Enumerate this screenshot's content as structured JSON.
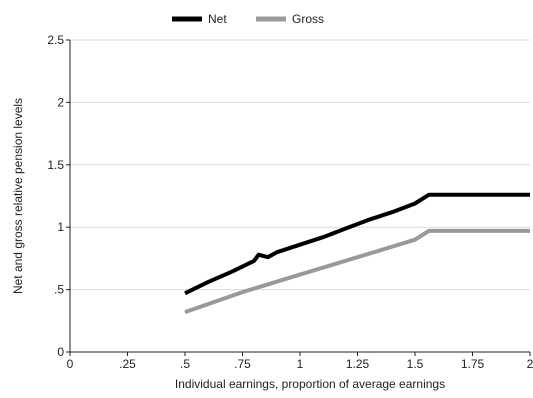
{
  "chart_data": {
    "type": "line",
    "title": "",
    "xlabel": "Individual earnings, proportion of average earnings",
    "ylabel": "Net and gross relative pension levels",
    "xlim": [
      0,
      2
    ],
    "ylim": [
      0,
      2.5
    ],
    "x_ticks": [
      0,
      0.25,
      0.5,
      0.75,
      1,
      1.25,
      1.5,
      1.75,
      2
    ],
    "x_tick_labels": [
      "0",
      ".25",
      ".5",
      ".75",
      "1",
      "1.25",
      "1.5",
      "1.75",
      "2"
    ],
    "y_ticks": [
      0,
      0.5,
      1,
      1.5,
      2,
      2.5
    ],
    "y_tick_labels": [
      "0",
      ".5",
      "1",
      "1.5",
      "2",
      "2.5"
    ],
    "grid": "horizontal",
    "legend_position": "top",
    "series": [
      {
        "name": "Net",
        "color": "#000000",
        "x": [
          0.5,
          0.6,
          0.7,
          0.8,
          0.82,
          0.86,
          0.9,
          1.0,
          1.1,
          1.2,
          1.3,
          1.4,
          1.5,
          1.56,
          1.75,
          2.0
        ],
        "y": [
          0.47,
          0.56,
          0.64,
          0.73,
          0.78,
          0.76,
          0.8,
          0.86,
          0.92,
          0.99,
          1.06,
          1.12,
          1.19,
          1.26,
          1.26,
          1.26
        ]
      },
      {
        "name": "Gross",
        "color": "#999999",
        "x": [
          0.5,
          0.75,
          1.0,
          1.25,
          1.5,
          1.56,
          1.75,
          2.0
        ],
        "y": [
          0.32,
          0.48,
          0.62,
          0.76,
          0.9,
          0.97,
          0.97,
          0.97
        ]
      }
    ]
  }
}
